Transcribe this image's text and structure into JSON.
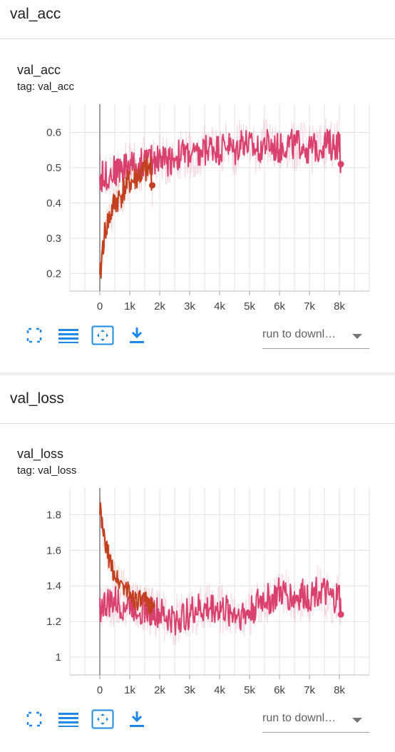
{
  "sections": [
    {
      "title": "val_acc",
      "card": {
        "title": "val_acc",
        "tag": "tag: val_acc"
      },
      "toolbar": {
        "run_select": "run to downl…"
      }
    },
    {
      "title": "val_loss",
      "card": {
        "title": "val_loss",
        "tag": "tag: val_loss"
      },
      "toolbar": {
        "run_select": "run to downl…"
      }
    }
  ],
  "colors": {
    "run_a": "#d9426f",
    "run_b": "#c2401f",
    "grid": "#e0e0e0",
    "icon": "#1e88e5",
    "axis_zero": "#9e9e9e"
  },
  "icons": [
    "fullscreen-icon",
    "toggle-log-scale-icon",
    "fit-domain-icon",
    "download-icon"
  ],
  "chart_data": [
    {
      "type": "line",
      "title": "val_acc",
      "xlabel": "",
      "ylabel": "",
      "x_ticks": [
        "0",
        "1k",
        "2k",
        "3k",
        "4k",
        "5k",
        "6k",
        "7k",
        "8k"
      ],
      "y_ticks": [
        "0.2",
        "0.3",
        "0.4",
        "0.5",
        "0.6"
      ],
      "xlim": [
        -1000,
        9000
      ],
      "ylim": [
        0.15,
        0.68
      ],
      "grid": true,
      "legend": "none",
      "series": [
        {
          "color": "#d9426f",
          "x": [
            0,
            250,
            500,
            750,
            1000,
            1250,
            1500,
            1750,
            2000,
            2250,
            2500,
            2750,
            3000,
            3250,
            3500,
            3750,
            4000,
            4250,
            4500,
            4750,
            5000,
            5250,
            5500,
            5750,
            6000,
            6250,
            6500,
            6750,
            7000,
            7250,
            7500,
            7750,
            8000,
            8050
          ],
          "values": [
            0.47,
            0.48,
            0.49,
            0.5,
            0.51,
            0.5,
            0.52,
            0.52,
            0.53,
            0.52,
            0.53,
            0.54,
            0.54,
            0.53,
            0.55,
            0.56,
            0.55,
            0.57,
            0.54,
            0.58,
            0.56,
            0.55,
            0.57,
            0.56,
            0.55,
            0.57,
            0.56,
            0.57,
            0.55,
            0.56,
            0.57,
            0.56,
            0.57,
            0.51
          ],
          "noise": 0.045
        },
        {
          "color": "#c2401f",
          "x": [
            0,
            100,
            200,
            300,
            400,
            500,
            600,
            700,
            800,
            900,
            1000,
            1100,
            1200,
            1300,
            1400,
            1500,
            1600,
            1700,
            1750
          ],
          "values": [
            0.17,
            0.28,
            0.33,
            0.35,
            0.38,
            0.4,
            0.41,
            0.42,
            0.44,
            0.45,
            0.46,
            0.46,
            0.47,
            0.48,
            0.48,
            0.49,
            0.49,
            0.5,
            0.45
          ],
          "noise": 0.04
        }
      ]
    },
    {
      "type": "line",
      "title": "val_loss",
      "xlabel": "",
      "ylabel": "",
      "x_ticks": [
        "0",
        "1k",
        "2k",
        "3k",
        "4k",
        "5k",
        "6k",
        "7k",
        "8k"
      ],
      "y_ticks": [
        "1",
        "1.2",
        "1.4",
        "1.6",
        "1.8"
      ],
      "xlim": [
        -1000,
        9000
      ],
      "ylim": [
        0.9,
        1.95
      ],
      "grid": true,
      "legend": "none",
      "series": [
        {
          "color": "#d9426f",
          "x": [
            0,
            250,
            500,
            750,
            1000,
            1250,
            1500,
            1750,
            2000,
            2250,
            2500,
            2750,
            3000,
            3250,
            3500,
            3750,
            4000,
            4250,
            4500,
            4750,
            5000,
            5250,
            5500,
            5750,
            6000,
            6250,
            6500,
            6750,
            7000,
            7250,
            7500,
            7750,
            8000,
            8050
          ],
          "values": [
            1.28,
            1.3,
            1.31,
            1.29,
            1.3,
            1.28,
            1.27,
            1.26,
            1.24,
            1.22,
            1.21,
            1.22,
            1.25,
            1.27,
            1.26,
            1.28,
            1.27,
            1.26,
            1.25,
            1.24,
            1.25,
            1.3,
            1.33,
            1.32,
            1.36,
            1.35,
            1.33,
            1.35,
            1.34,
            1.38,
            1.36,
            1.32,
            1.34,
            1.24
          ],
          "noise": 0.09
        },
        {
          "color": "#c2401f",
          "x": [
            0,
            100,
            200,
            300,
            400,
            500,
            600,
            700,
            800,
            900,
            1000,
            1100,
            1200,
            1300,
            1400,
            1500,
            1600,
            1700,
            1750
          ],
          "values": [
            1.85,
            1.7,
            1.62,
            1.56,
            1.5,
            1.47,
            1.43,
            1.42,
            1.4,
            1.38,
            1.36,
            1.34,
            1.33,
            1.32,
            1.31,
            1.31,
            1.3,
            1.3,
            1.29
          ],
          "noise": 0.06
        }
      ]
    }
  ]
}
